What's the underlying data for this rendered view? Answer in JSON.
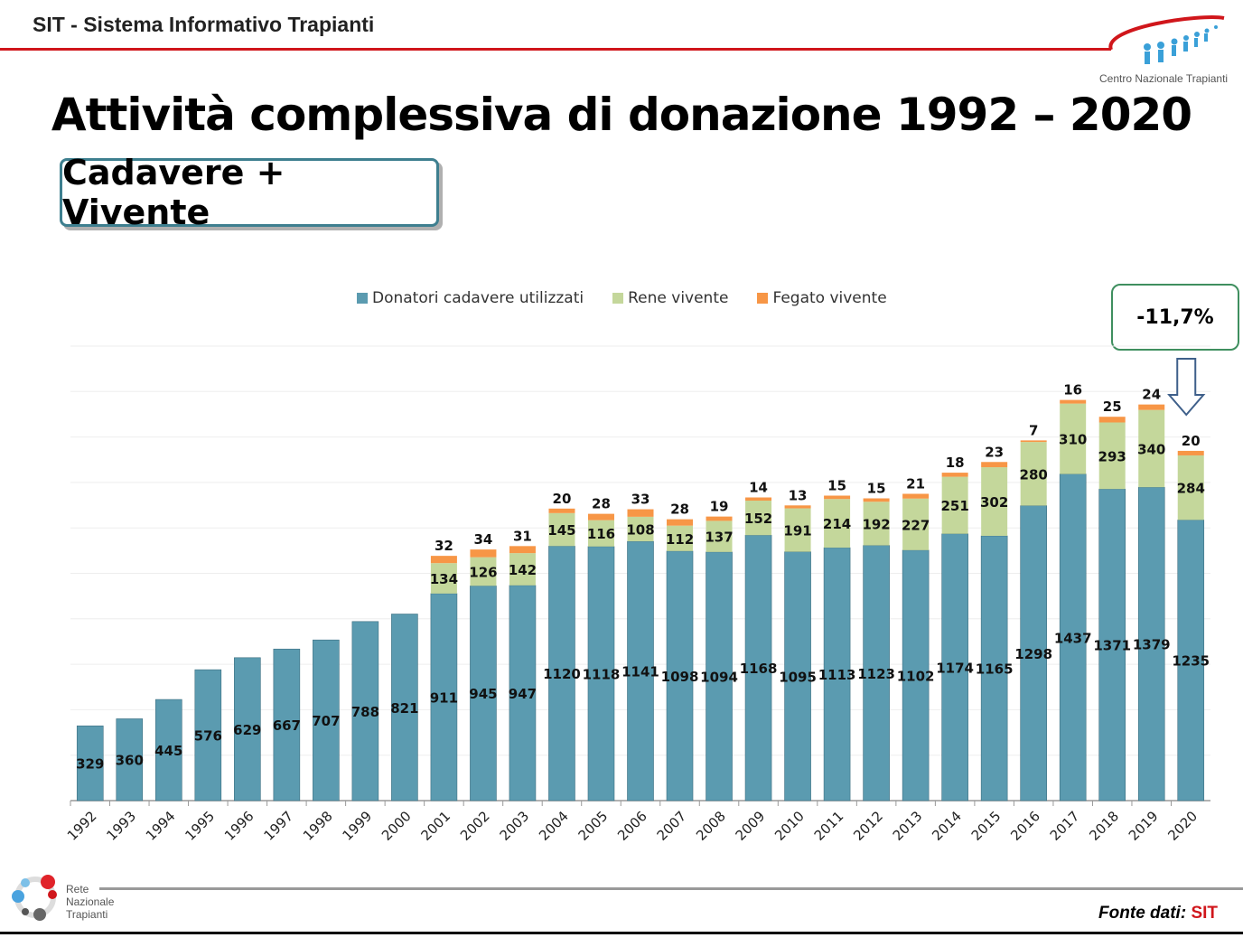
{
  "header": {
    "title": "SIT - Sistema Informativo Trapianti",
    "logo_text": "Centro Nazionale Trapianti"
  },
  "slide": {
    "title": "Attività complessiva di donazione  1992 – 2020",
    "subtitle": "Cadavere + Vivente",
    "change_badge": "-11,7%"
  },
  "footer": {
    "logo_text": [
      "Rete",
      "Nazionale",
      "Trapianti"
    ],
    "source_label": "Fonte dati:",
    "source_value": "SIT"
  },
  "chart_data": {
    "type": "bar",
    "stacked": true,
    "title": "Attività complessiva di donazione 1992 – 2020",
    "xlabel": "",
    "ylabel": "",
    "ylim": [
      0,
      2000
    ],
    "grid": true,
    "legend_position": "top",
    "categories": [
      "1992",
      "1993",
      "1994",
      "1995",
      "1996",
      "1997",
      "1998",
      "1999",
      "2000",
      "2001",
      "2002",
      "2003",
      "2004",
      "2005",
      "2006",
      "2007",
      "2008",
      "2009",
      "2010",
      "2011",
      "2012",
      "2013",
      "2014",
      "2015",
      "2016",
      "2017",
      "2018",
      "2019",
      "2020"
    ],
    "series": [
      {
        "name": "Donatori cadavere utilizzati",
        "color": "#5b9bb0",
        "values": [
          329,
          360,
          445,
          576,
          629,
          667,
          707,
          788,
          821,
          911,
          945,
          947,
          1120,
          1118,
          1141,
          1098,
          1094,
          1168,
          1095,
          1113,
          1123,
          1102,
          1174,
          1165,
          1298,
          1437,
          1371,
          1379,
          1235
        ]
      },
      {
        "name": "Rene vivente",
        "color": "#c4d79b",
        "values": [
          null,
          null,
          null,
          null,
          null,
          null,
          null,
          null,
          null,
          134,
          126,
          142,
          145,
          116,
          108,
          112,
          137,
          152,
          191,
          214,
          192,
          227,
          251,
          302,
          280,
          310,
          293,
          340,
          284
        ]
      },
      {
        "name": "Fegato vivente",
        "color": "#f79646",
        "values": [
          null,
          null,
          null,
          null,
          null,
          null,
          null,
          null,
          null,
          32,
          34,
          31,
          20,
          28,
          33,
          28,
          19,
          14,
          13,
          15,
          15,
          21,
          18,
          23,
          7,
          16,
          25,
          24,
          20
        ]
      }
    ],
    "annotations": [
      "-11,7%"
    ]
  }
}
